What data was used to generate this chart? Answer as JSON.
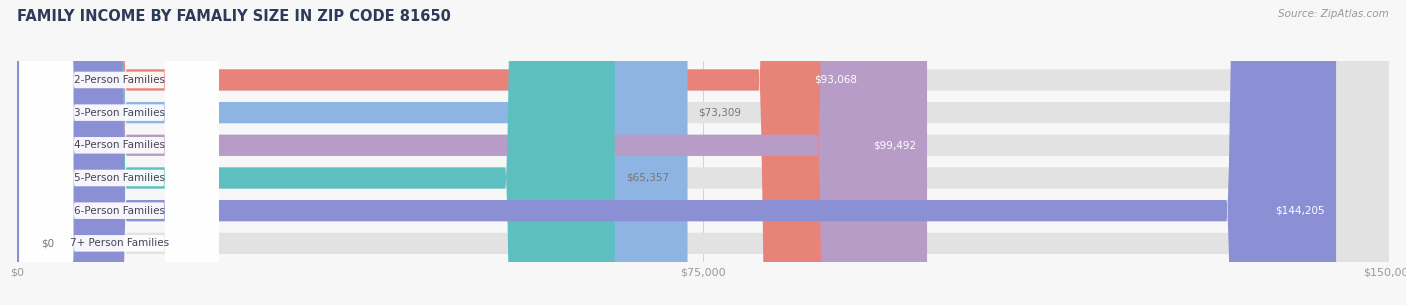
{
  "title": "FAMILY INCOME BY FAMALIY SIZE IN ZIP CODE 81650",
  "source": "Source: ZipAtlas.com",
  "categories": [
    "2-Person Families",
    "3-Person Families",
    "4-Person Families",
    "5-Person Families",
    "6-Person Families",
    "7+ Person Families"
  ],
  "values": [
    93068,
    73309,
    99492,
    65357,
    144205,
    0
  ],
  "bar_colors": [
    "#E8837A",
    "#8EB4E3",
    "#B89CC8",
    "#5DBFBF",
    "#8B8FD4",
    "#F4A8B8"
  ],
  "xmax": 150000,
  "xticks": [
    0,
    75000,
    150000
  ],
  "xticklabels": [
    "$0",
    "$75,000",
    "$150,000"
  ],
  "bg_color": "#f7f7f7",
  "bar_bg_color": "#e2e2e2",
  "title_color": "#2d3a5a",
  "title_fontsize": 10.5,
  "source_fontsize": 7.5,
  "label_fontsize": 7.5,
  "value_fontsize": 7.5,
  "bar_height": 0.65,
  "rounding": 12000
}
